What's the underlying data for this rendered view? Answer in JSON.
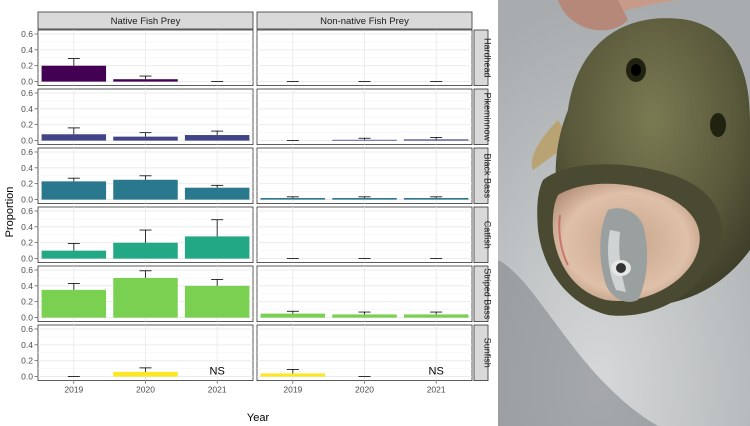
{
  "chart_data": {
    "type": "bar",
    "xlabel": "Year",
    "ylabel": "Proportion",
    "years": [
      "2019",
      "2020",
      "2021"
    ],
    "y_ticks": [
      "0.0",
      "0.2",
      "0.4",
      "0.6"
    ],
    "ylim": [
      0,
      0.6
    ],
    "column_facets": [
      "Native Fish Prey",
      "Non-native Fish Prey"
    ],
    "grid": true,
    "na_label": "NS",
    "predators": [
      {
        "name": "Hardhead",
        "color": "#440154",
        "native": {
          "values": [
            0.2,
            0.03,
            0.0
          ],
          "errors": [
            0.29,
            0.07,
            0.0
          ]
        },
        "nonnative": {
          "values": [
            0.0,
            0.0,
            0.0
          ],
          "errors": [
            0.0,
            0.0,
            0.0
          ]
        }
      },
      {
        "name": "Pikeminnow",
        "color": "#414487",
        "native": {
          "values": [
            0.08,
            0.05,
            0.07
          ],
          "errors": [
            0.16,
            0.1,
            0.12
          ]
        },
        "nonnative": {
          "values": [
            0.0,
            0.01,
            0.015
          ],
          "errors": [
            0.0,
            0.03,
            0.04
          ]
        }
      },
      {
        "name": "Black Bass",
        "color": "#2A788E",
        "native": {
          "values": [
            0.23,
            0.25,
            0.15
          ],
          "errors": [
            0.27,
            0.3,
            0.18
          ]
        },
        "nonnative": {
          "values": [
            0.02,
            0.02,
            0.02
          ],
          "errors": [
            0.035,
            0.035,
            0.035
          ]
        }
      },
      {
        "name": "Catfish",
        "color": "#22A884",
        "native": {
          "values": [
            0.1,
            0.2,
            0.28
          ],
          "errors": [
            0.19,
            0.36,
            0.49
          ]
        },
        "nonnative": {
          "values": [
            0.0,
            0.0,
            0.0
          ],
          "errors": [
            0.0,
            0.0,
            0.0
          ]
        }
      },
      {
        "name": "Striped Bass",
        "color": "#7AD151",
        "native": {
          "values": [
            0.35,
            0.5,
            0.4
          ],
          "errors": [
            0.43,
            0.59,
            0.48
          ]
        },
        "nonnative": {
          "values": [
            0.05,
            0.04,
            0.04
          ],
          "errors": [
            0.08,
            0.07,
            0.07
          ]
        }
      },
      {
        "name": "Sunfish",
        "color": "#FDE725",
        "native": {
          "values": [
            0.0,
            0.06,
            null
          ],
          "errors": [
            0.0,
            0.11,
            null
          ]
        },
        "nonnative": {
          "values": [
            0.04,
            0.0,
            null
          ],
          "errors": [
            0.09,
            0.0,
            null
          ]
        }
      }
    ]
  },
  "photo": {
    "description_icon": "bass-with-fish-in-mouth-photo"
  }
}
